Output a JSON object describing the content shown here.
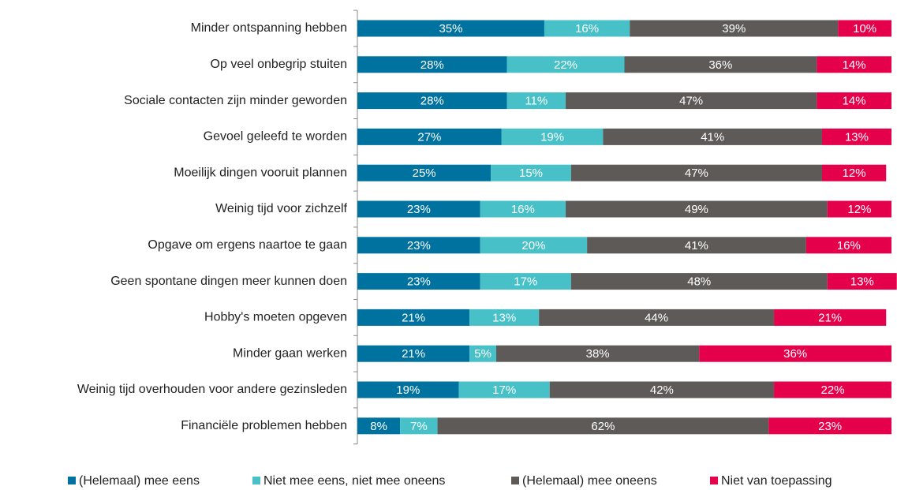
{
  "chart_data": {
    "type": "stacked_barh",
    "categories": [
      "Minder ontspanning hebben",
      "Op veel onbegrip stuiten",
      "Sociale contacten zijn minder geworden",
      "Gevoel geleefd te worden",
      "Moeilijk dingen vooruit plannen",
      "Weinig tijd voor zichzelf",
      "Opgave om ergens naartoe te gaan",
      "Geen spontane dingen meer kunnen doen",
      "Hobby's moeten opgeven",
      "Minder gaan werken",
      "Weinig tijd overhouden voor andere gezinsleden",
      "Financiële problemen hebben"
    ],
    "series": [
      {
        "name": "(Helemaal) mee eens",
        "color": "#0072a0",
        "values": [
          35,
          28,
          28,
          27,
          25,
          23,
          23,
          23,
          21,
          21,
          19,
          8
        ],
        "value_labels": [
          "35%",
          "28%",
          "28%",
          "27%",
          "25%",
          "23%",
          "23%",
          "23%",
          "21%",
          "21%",
          "19%",
          "8%"
        ]
      },
      {
        "name": "Niet mee eens, niet mee oneens",
        "color": "#47c1c7",
        "values": [
          16,
          22,
          11,
          19,
          15,
          16,
          20,
          17,
          13,
          5,
          17,
          7
        ],
        "value_labels": [
          "16%",
          "22%",
          "11%",
          "19%",
          "15%",
          "16%",
          "20%",
          "17%",
          "13%",
          "5%",
          "17%",
          "7%"
        ]
      },
      {
        "name": "(Helemaal) mee oneens",
        "color": "#5e5a58",
        "values": [
          39,
          36,
          47,
          41,
          47,
          49,
          41,
          48,
          44,
          38,
          42,
          62
        ],
        "value_labels": [
          "39%",
          "36%",
          "47%",
          "41%",
          "47%",
          "49%",
          "41%",
          "48%",
          "44%",
          "38%",
          "42%",
          "62%"
        ]
      },
      {
        "name": "Niet van toepassing",
        "color": "#e5004b",
        "values": [
          10,
          14,
          14,
          13,
          12,
          12,
          16,
          13,
          21,
          36,
          22,
          23
        ],
        "value_labels": [
          "10%",
          "14%",
          "14%",
          "13%",
          "12%",
          "12%",
          "16%",
          "13%",
          "21%",
          "36%",
          "22%",
          "23%"
        ]
      }
    ],
    "xlim": [
      0,
      100
    ],
    "legend": "bottom"
  }
}
